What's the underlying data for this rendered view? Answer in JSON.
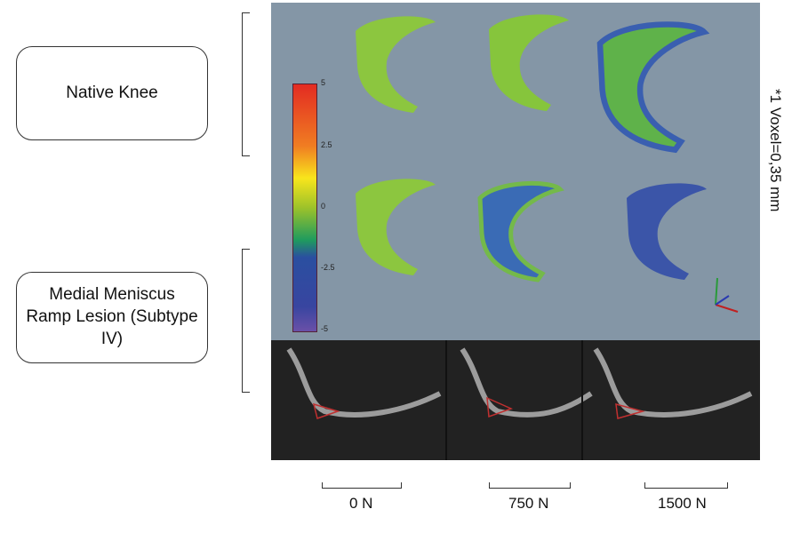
{
  "groups": [
    {
      "label": "Native Knee"
    },
    {
      "label": "Medial Meniscus Ramp Lesion (Subtype IV)"
    }
  ],
  "colorbar": {
    "ticks": [
      "5",
      "2.5",
      "0",
      "-2.5",
      "-5"
    ],
    "colors": [
      "#e32b22",
      "#f07d22",
      "#f8e51c",
      "#6cbf3a",
      "#1f9b5e",
      "#2a4fa0",
      "#3845a0",
      "#6a50a8"
    ]
  },
  "loads": [
    "0 N",
    "750 N",
    "1500 N"
  ],
  "note": "*1 Voxel=0,35 mm"
}
